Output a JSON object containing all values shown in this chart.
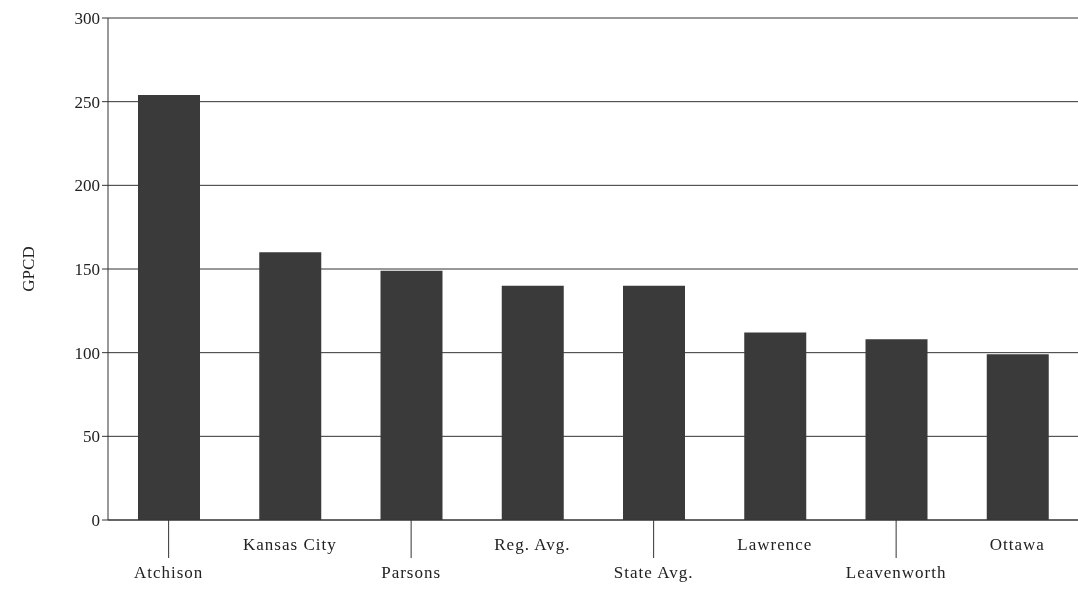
{
  "chart_data": {
    "type": "bar",
    "ylabel": "GPCD",
    "categories": [
      "Atchison",
      "Kansas City",
      "Parsons",
      "Reg. Avg.",
      "State Avg.",
      "Lawrence",
      "Leavenworth",
      "Ottawa"
    ],
    "values": [
      254,
      160,
      149,
      140,
      140,
      112,
      108,
      99
    ],
    "color": "#3a3a3a",
    "ylim": [
      0,
      300
    ],
    "yticks": [
      0,
      50,
      100,
      150,
      200,
      250,
      300
    ],
    "grid": "y"
  }
}
